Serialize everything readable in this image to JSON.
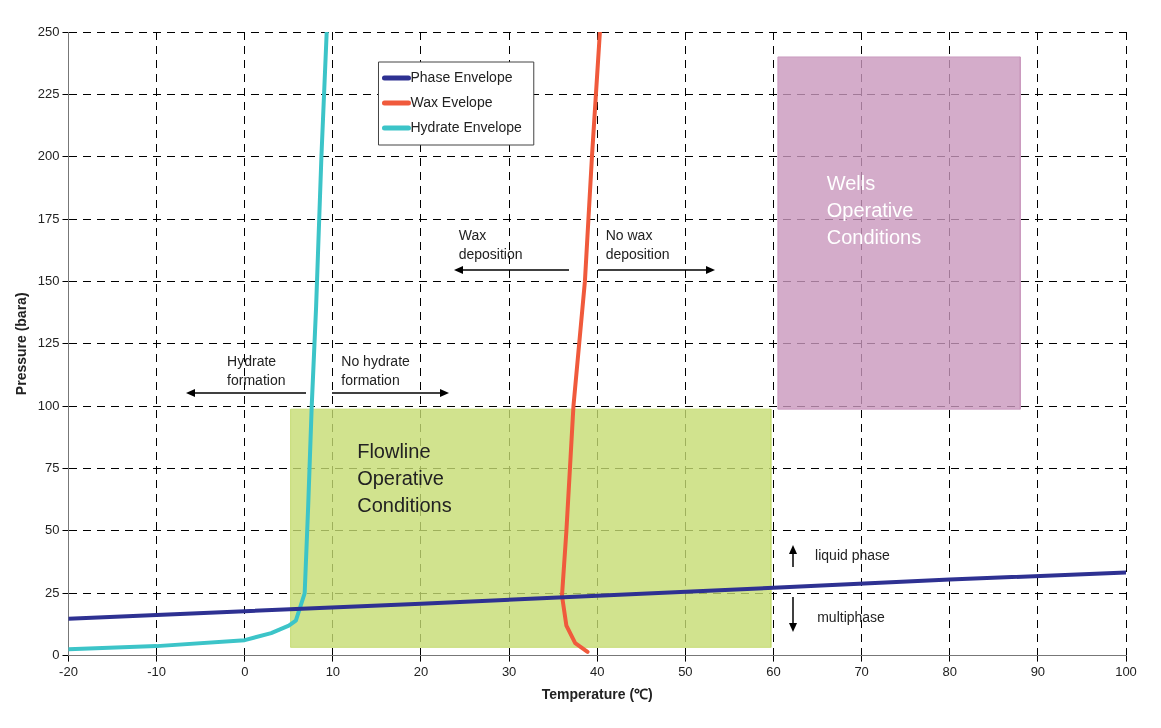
{
  "chart_data": {
    "type": "line",
    "xlabel": "Temperature (℃)",
    "ylabel": "Pressure (bara)",
    "xlim": [
      -20,
      100
    ],
    "xticks": [
      -20,
      -10,
      0,
      10,
      20,
      30,
      40,
      50,
      60,
      70,
      80,
      90,
      100
    ],
    "ylim": [
      0,
      250
    ],
    "yticks": [
      0,
      25,
      50,
      75,
      100,
      125,
      150,
      175,
      200,
      225,
      250
    ],
    "grid": true,
    "legend": "top left",
    "marker": "none",
    "line_style": "solid",
    "series": [
      {
        "type": "area",
        "color": "#c5dc72",
        "x": [
          5.2,
          5.2,
          59.7,
          59.7,
          5.2
        ],
        "values": [
          3.3,
          98.8,
          98.8,
          3.3,
          3.3
        ]
      },
      {
        "type": "area",
        "color": "#c997bd",
        "x": [
          60.5,
          60.5,
          88,
          88,
          60.5
        ],
        "values": [
          98.8,
          240,
          240,
          98.8,
          98.8
        ]
      },
      {
        "name": "Phase Envelope",
        "color": "#2e3192",
        "x": [
          -20,
          0,
          20,
          40,
          60,
          80,
          100
        ],
        "values": [
          14.8,
          17.8,
          20.8,
          24,
          27.2,
          30.5,
          33.3
        ]
      },
      {
        "name": "Wax Evelope",
        "color": "#f05a3c",
        "x": [
          38.9,
          37.5,
          36.5,
          36,
          36.5,
          36.9,
          37.3,
          38.6,
          39.4,
          40.3
        ],
        "values": [
          1.5,
          5,
          12,
          24,
          50,
          75,
          100,
          150,
          200,
          250
        ]
      },
      {
        "name": "Hydrate Envelope",
        "color": "#3cc4c8",
        "x": [
          -20,
          -10,
          0,
          3,
          5,
          5.8,
          6.8,
          7.2,
          7.6,
          8.1,
          8.7,
          9.3
        ],
        "values": [
          2.5,
          3.8,
          6.2,
          9,
          12,
          14,
          25,
          60,
          100,
          140,
          200,
          250
        ]
      }
    ],
    "annotations": [
      "Hydrate\nformation",
      "No hydrate\nformation",
      "Wax\ndeposition",
      "No wax\ndeposition",
      "liquid phase",
      "multiphase",
      "Flowline\nOperative\nConditions",
      "Wells\nOperative\nConditions"
    ]
  }
}
